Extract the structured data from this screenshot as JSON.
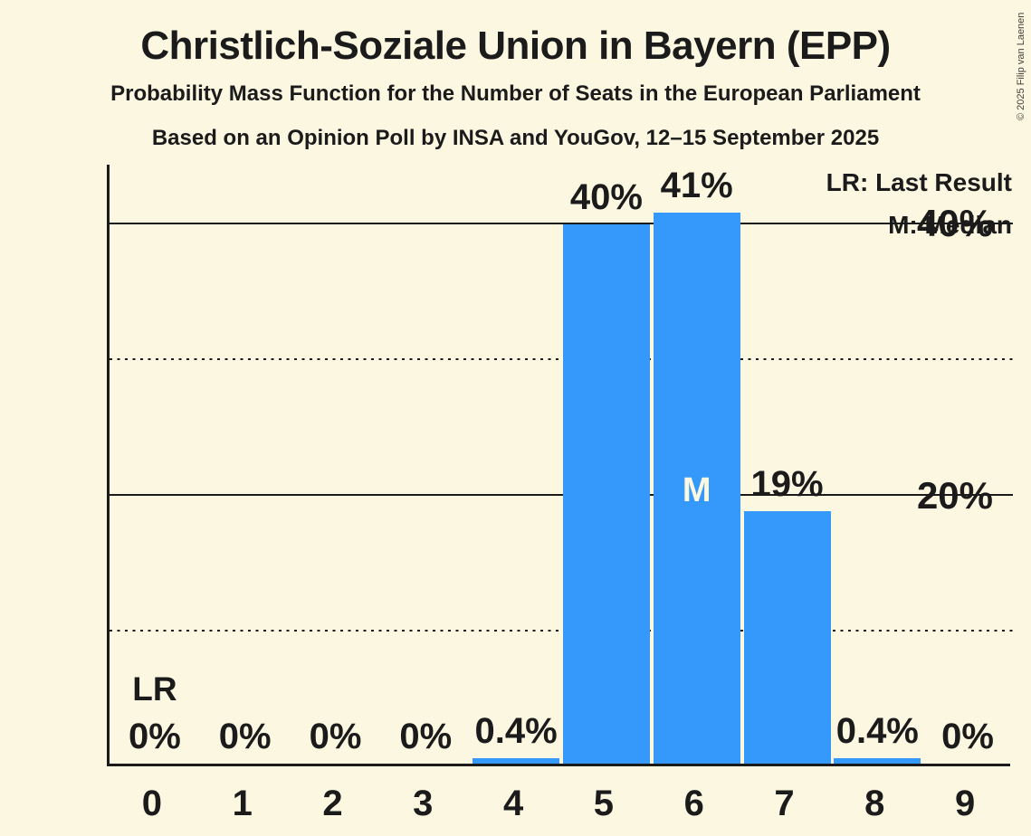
{
  "meta": {
    "copyright": "© 2025 Filip van Laenen"
  },
  "header": {
    "title": "Christlich-Soziale Union in Bayern (EPP)",
    "subtitle1": "Probability Mass Function for the Number of Seats in the European Parliament",
    "subtitle2": "Based on an Opinion Poll by INSA and YouGov, 12–15 September 2025"
  },
  "legend": {
    "lr": "LR: Last Result",
    "m": "M: Median"
  },
  "colors": {
    "background": "#FCF7E1",
    "bar": "#3499FA",
    "ink": "#1B1B1B",
    "median_label": "#FCF7E1"
  },
  "chart_data": {
    "type": "bar",
    "title": "Christlich-Soziale Union in Bayern (EPP)",
    "subtitle": "Probability Mass Function for the Number of Seats in the European Parliament",
    "source_line": "Based on an Opinion Poll by INSA and YouGov, 12–15 September 2025",
    "categories": [
      "0",
      "1",
      "2",
      "3",
      "4",
      "5",
      "6",
      "7",
      "8",
      "9"
    ],
    "values": [
      0,
      0,
      0,
      0,
      0.4,
      39.7,
      40.6,
      18.6,
      0.4,
      0
    ],
    "bar_labels": [
      "0%",
      "0%",
      "0%",
      "0%",
      "0.4%",
      "40%",
      "41%",
      "19%",
      "0.4%",
      "0%"
    ],
    "ylim": [
      0,
      44.3
    ],
    "y_axis": {
      "ticks": [
        {
          "label": "40%",
          "value": 40
        },
        {
          "label": "20%",
          "value": 20
        }
      ],
      "gridlines": [
        {
          "value": 40,
          "style": "solid"
        },
        {
          "value": 30,
          "style": "dotted"
        },
        {
          "value": 20,
          "style": "solid"
        },
        {
          "value": 10,
          "style": "dotted"
        }
      ]
    },
    "annotations": {
      "lr_label": "LR",
      "last_result_seat": "0",
      "median_label": "M",
      "median_seat": "6"
    },
    "legend_position": "top-right",
    "grid": "horizontal"
  }
}
